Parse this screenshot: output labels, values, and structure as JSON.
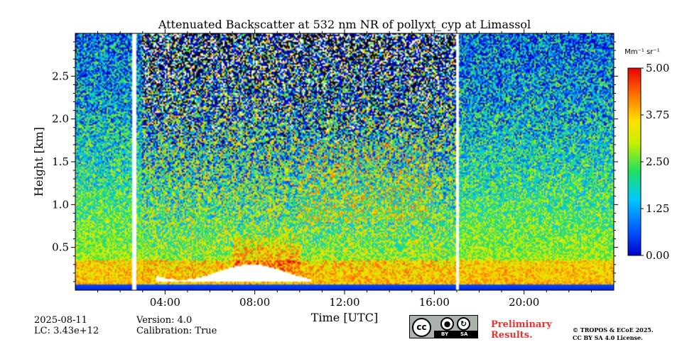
{
  "chart_data": {
    "type": "heatmap",
    "title": "Attenuated Backscatter at 532 nm NR of pollyxt_cyp at Limassol",
    "xlabel": "Time [UTC]",
    "ylabel": "Height [km]",
    "x_range_hours": [
      0,
      24
    ],
    "y_range_km": [
      0.0,
      3.0
    ],
    "x_tick_values_hours": [
      4,
      8,
      12,
      16,
      20
    ],
    "x_tick_labels": [
      "04:00",
      "08:00",
      "12:00",
      "16:00",
      "20:00"
    ],
    "y_tick_values": [
      0.5,
      1.0,
      1.5,
      2.0,
      2.5
    ],
    "y_tick_labels": [
      "0.5",
      "1.0",
      "1.5",
      "2.0",
      "2.5"
    ],
    "colorbar": {
      "label": "Mm⁻¹ sr⁻¹",
      "range": [
        0.0,
        5.0
      ],
      "tick_values": [
        0.0,
        1.25,
        2.5,
        3.75,
        5.0
      ],
      "tick_labels": [
        "0.00",
        "1.25",
        "2.50",
        "3.75",
        "5.00"
      ],
      "colormap": "jet"
    },
    "data_gaps_hours": [
      [
        2.55,
        2.7
      ],
      [
        16.95,
        17.1
      ]
    ],
    "saturated_region": {
      "time_hours": [
        3.6,
        10.5
      ],
      "height_km": [
        0.1,
        0.3
      ]
    },
    "grid": false
  },
  "footer": {
    "date": "2025-08-11",
    "lc": "LC: 3.43e+12",
    "version": "Version: 4.0",
    "calibration": "Calibration: True",
    "preliminary_line1": "Preliminary",
    "preliminary_line2": "Results.",
    "copyright_line1": "© TROPOS & ECoE 2025.",
    "copyright_line2": "CC BY SA 4.0 License.",
    "cc_badge_text": "cc",
    "by_label": "BY",
    "sa_label": "SA"
  },
  "colors": {
    "saturated": "#ffffff",
    "prelim": "#e8322f"
  }
}
